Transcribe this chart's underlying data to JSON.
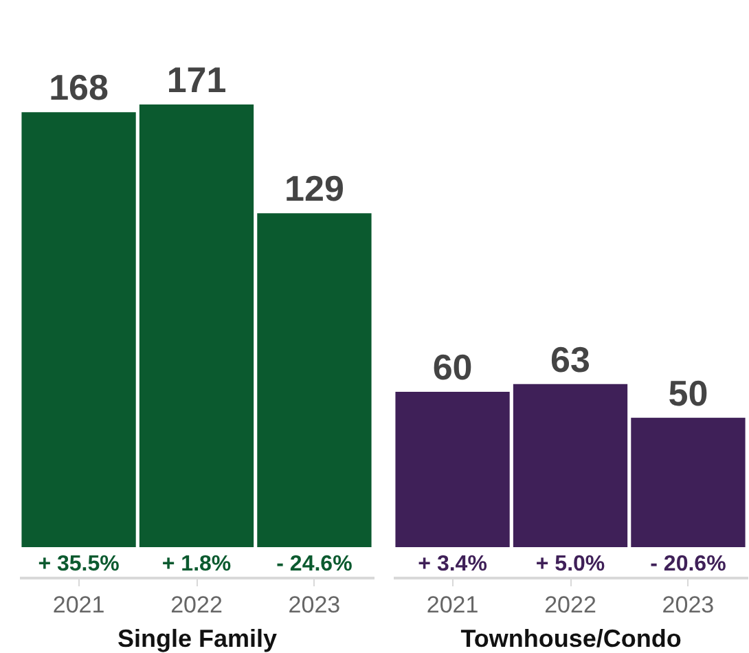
{
  "chart_data": [
    {
      "type": "bar",
      "xlabel": "Single Family",
      "categories": [
        "2021",
        "2022",
        "2023"
      ],
      "values": [
        168,
        171,
        129
      ],
      "color": "#0b5a2f",
      "data_labels": true,
      "tick_labels": "x",
      "annotations": [
        "+ 35.5%",
        "+ 1.8%",
        "- 24.6%"
      ]
    },
    {
      "type": "bar",
      "xlabel": "Townhouse/Condo",
      "categories": [
        "2021",
        "2022",
        "2023"
      ],
      "values": [
        60,
        63,
        50
      ],
      "color": "#3f2058",
      "data_labels": true,
      "tick_labels": "x",
      "annotations": [
        "+ 3.4%",
        "+ 5.0%",
        "- 20.6%"
      ]
    }
  ]
}
